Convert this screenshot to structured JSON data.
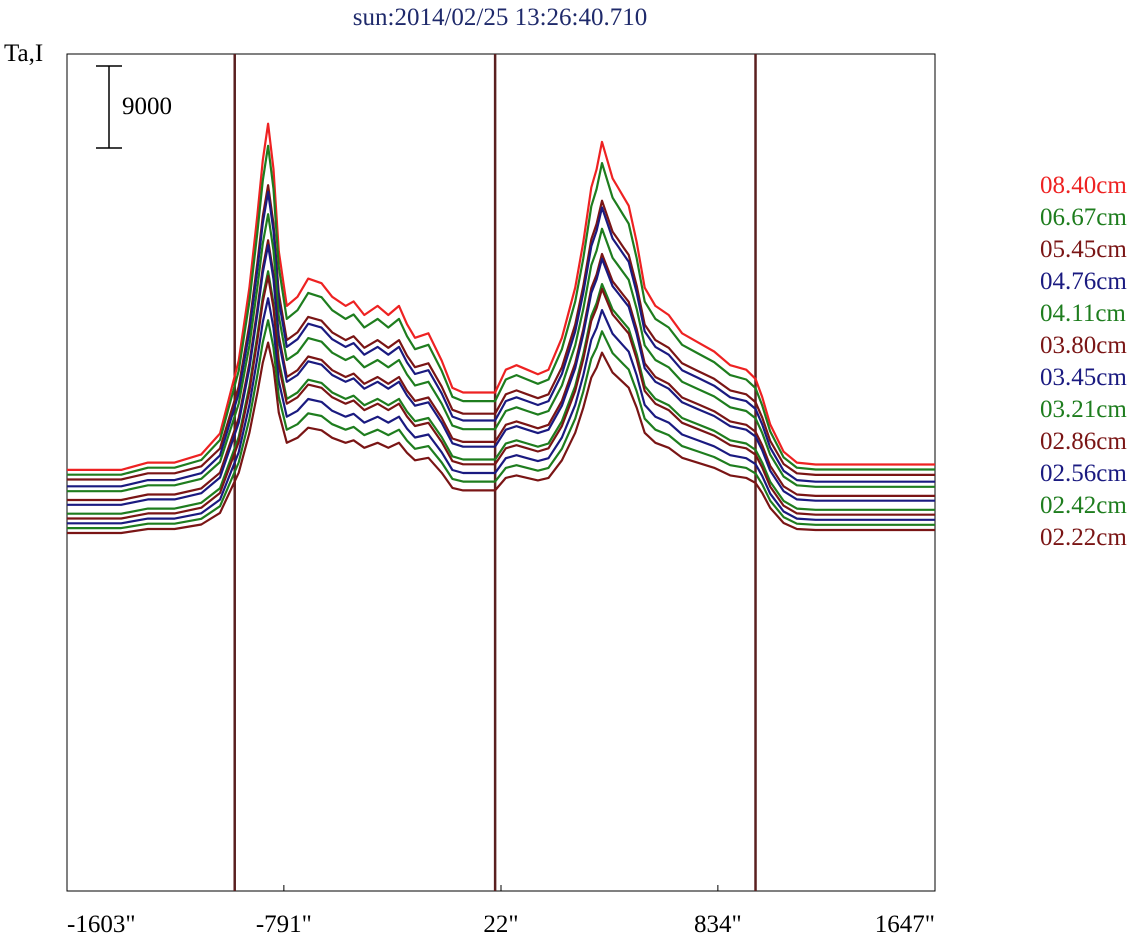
{
  "chart_data": {
    "type": "line",
    "title": "sun:2014/02/25 13:26:40.710",
    "ylabel": "Ta,I",
    "scale_bar_label": "9000",
    "x_ticks": [
      "-1603\"",
      "-791\"",
      "22\"",
      "834\"",
      "1647\""
    ],
    "xlim": [
      -1603,
      1647
    ],
    "vertical_markers": [
      -975,
      0,
      975
    ],
    "marker_color": "#5a2020",
    "grid": false,
    "legend_position": "right",
    "x_knots": [
      -1603,
      -1400,
      -1300,
      -1200,
      -1100,
      -1030,
      -960,
      -920,
      -890,
      -870,
      -850,
      -830,
      -810,
      -780,
      -740,
      -700,
      -650,
      -610,
      -560,
      -530,
      -490,
      -440,
      -400,
      -360,
      -330,
      -300,
      -250,
      -200,
      -160,
      -120,
      -60,
      0,
      40,
      80,
      120,
      160,
      200,
      250,
      300,
      330,
      360,
      380,
      400,
      420,
      440,
      460,
      480,
      500,
      530,
      560,
      600,
      650,
      700,
      760,
      820,
      880,
      940,
      975,
      1000,
      1030,
      1080,
      1130,
      1200,
      1400,
      1647
    ],
    "base_shape": [
      0,
      0,
      800,
      800,
      1700,
      4000,
      12000,
      20000,
      28000,
      34000,
      38000,
      33000,
      24000,
      18000,
      19000,
      21000,
      20500,
      19000,
      18000,
      18500,
      17000,
      18000,
      17000,
      18000,
      16000,
      14500,
      15000,
      12000,
      9000,
      8500,
      8500,
      8500,
      11000,
      11500,
      11000,
      10500,
      11000,
      14500,
      20000,
      25000,
      31000,
      33000,
      36000,
      34000,
      32000,
      31000,
      30000,
      29000,
      25000,
      20000,
      18000,
      17000,
      15000,
      14000,
      13000,
      11500,
      11000,
      10000,
      8000,
      5000,
      2000,
      800,
      600,
      600,
      600
    ],
    "series": [
      {
        "name": "08.40cm",
        "color": "#ee2222",
        "baseline": 3300,
        "scale": 1.0
      },
      {
        "name": "06.67cm",
        "color": "#1e7d1e",
        "baseline": 2780,
        "scale": 0.95
      },
      {
        "name": "05.45cm",
        "color": "#7a1515",
        "baseline": 2250,
        "scale": 0.85
      },
      {
        "name": "04.76cm",
        "color": "#1a1a80",
        "baseline": 1500,
        "scale": 0.85
      },
      {
        "name": "04.11cm",
        "color": "#1e7d1e",
        "baseline": 970,
        "scale": 0.8
      },
      {
        "name": "03.80cm",
        "color": "#7a1515",
        "baseline": 0,
        "scale": 0.75
      },
      {
        "name": "03.45cm",
        "color": "#1a1a80",
        "baseline": -530,
        "scale": 0.75
      },
      {
        "name": "03.21cm",
        "color": "#1e7d1e",
        "baseline": -1500,
        "scale": 0.7
      },
      {
        "name": "02.86cm",
        "color": "#7a1515",
        "baseline": -2030,
        "scale": 0.7
      },
      {
        "name": "02.56cm",
        "color": "#1a1a80",
        "baseline": -2560,
        "scale": 0.65
      },
      {
        "name": "02.42cm",
        "color": "#1e7d1e",
        "baseline": -3080,
        "scale": 0.6
      },
      {
        "name": "02.22cm",
        "color": "#7a1515",
        "baseline": -3620,
        "scale": 0.55
      }
    ]
  }
}
